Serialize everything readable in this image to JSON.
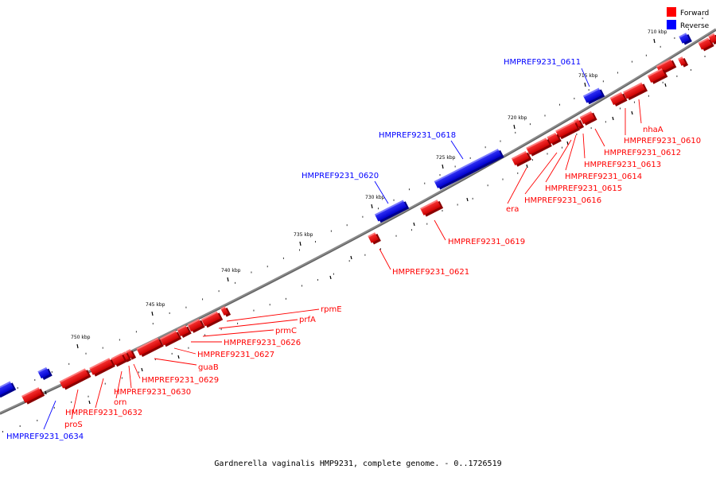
{
  "legend": {
    "forward": {
      "label": "Forward",
      "color": "#ff0000"
    },
    "reverse": {
      "label": "Reverse",
      "color": "#0000ff"
    }
  },
  "ticks": [
    "710 kbp",
    "715 kbp",
    "720 kbp",
    "725 kbp",
    "730 kbp",
    "735 kbp",
    "740 kbp",
    "745 kbp",
    "750 kbp"
  ],
  "genes": [
    {
      "label": "HMPREF9231_0611",
      "strand": "reverse"
    },
    {
      "label": "nhaA",
      "strand": "forward"
    },
    {
      "label": "HMPREF9231_0610",
      "strand": "forward"
    },
    {
      "label": "HMPREF9231_0612",
      "strand": "forward"
    },
    {
      "label": "HMPREF9231_0613",
      "strand": "forward"
    },
    {
      "label": "HMPREF9231_0614",
      "strand": "forward"
    },
    {
      "label": "HMPREF9231_0615",
      "strand": "forward"
    },
    {
      "label": "HMPREF9231_0616",
      "strand": "forward"
    },
    {
      "label": "era",
      "strand": "forward"
    },
    {
      "label": "HMPREF9231_0618",
      "strand": "reverse"
    },
    {
      "label": "HMPREF9231_0620",
      "strand": "reverse"
    },
    {
      "label": "HMPREF9231_0619",
      "strand": "forward"
    },
    {
      "label": "HMPREF9231_0621",
      "strand": "forward"
    },
    {
      "label": "rpmE",
      "strand": "forward"
    },
    {
      "label": "prfA",
      "strand": "forward"
    },
    {
      "label": "prmC",
      "strand": "forward"
    },
    {
      "label": "HMPREF9231_0626",
      "strand": "forward"
    },
    {
      "label": "HMPREF9231_0627",
      "strand": "forward"
    },
    {
      "label": "guaB",
      "strand": "forward"
    },
    {
      "label": "HMPREF9231_0629",
      "strand": "forward"
    },
    {
      "label": "HMPREF9231_0630",
      "strand": "forward"
    },
    {
      "label": "orn",
      "strand": "forward"
    },
    {
      "label": "HMPREF9231_0632",
      "strand": "forward"
    },
    {
      "label": "proS",
      "strand": "forward"
    },
    {
      "label": "HMPREF9231_0634",
      "strand": "reverse"
    }
  ],
  "caption": "Gardnerella vaginalis HMP9231, complete genome. - 0..1726519"
}
